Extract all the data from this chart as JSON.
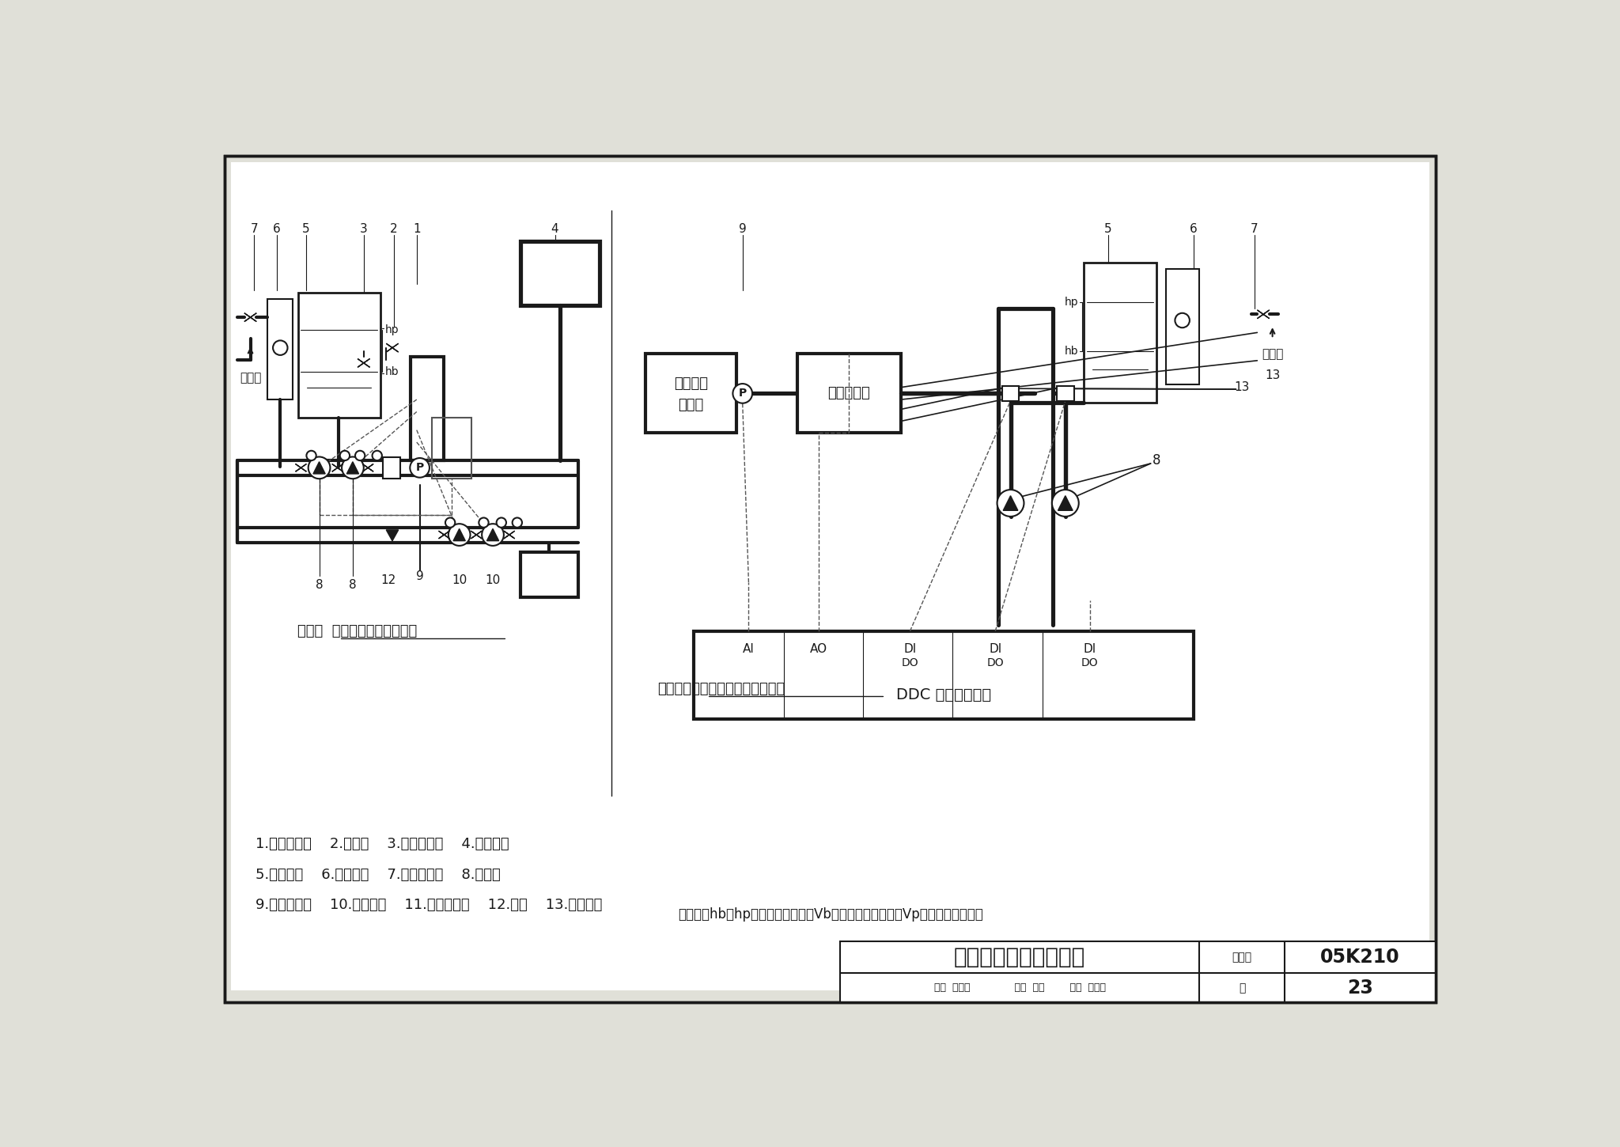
{
  "title": "变频补水泵定压原理图",
  "page_num": "05K210",
  "page": "23",
  "bg_color": "#e0e0d8",
  "diagram1_caption": "图一：  变频补水泵定压原理图",
  "diagram2_caption": "图二：变频补水泵定压自控原理图",
  "note_text": "注：图中hb、hp分别为系统补水量Vb、系统最大膨胀水量Vp对应的水位高差。",
  "legend_lines": [
    "1.变频控制器    2.安全阀    3.泄水电磁阀    4.末端用户",
    "5.软化水箱    6.软化设备    7.倒流防止器    8.补水泵",
    "9.压力传感器    10.循环水泵    11.冷热源装置    12.水表    13.水流开关"
  ],
  "lw": 1.5
}
